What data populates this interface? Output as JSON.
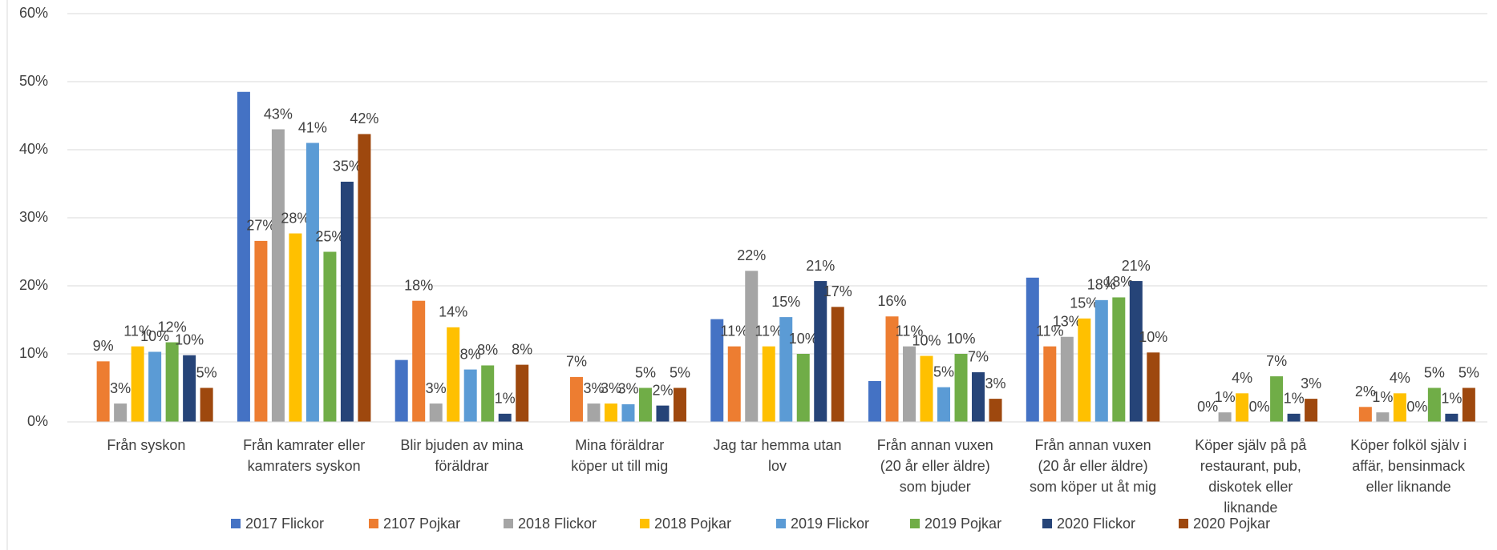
{
  "chart_data": {
    "type": "bar",
    "categories": [
      [
        "Från syskon"
      ],
      [
        "Från kamrater eller",
        "kamraters syskon"
      ],
      [
        "Blir bjuden av mina",
        "föräldrar"
      ],
      [
        "Mina föräldrar",
        "köper ut till mig"
      ],
      [
        "Jag tar hemma utan",
        "lov"
      ],
      [
        "Från annan vuxen",
        "(20 år eller äldre)",
        "som bjuder"
      ],
      [
        "Från annan vuxen",
        "(20 år eller äldre)",
        "som köper ut åt mig"
      ],
      [
        "Köper själv på på",
        "restaurant, pub,",
        "diskotek eller",
        "liknande"
      ],
      [
        "Köper folköl själv i",
        "affär, bensinmack",
        "eller liknande"
      ]
    ],
    "series": [
      {
        "name": "2017 Flickor",
        "color": "#4472c4",
        "values": [
          null,
          48.5,
          9.1,
          null,
          15.1,
          6.0,
          21.2,
          null,
          null
        ]
      },
      {
        "name": "2107 Pojkar",
        "color": "#ed7d31",
        "values": [
          8.9,
          26.6,
          17.8,
          6.6,
          11.1,
          15.5,
          11.1,
          0,
          2.2
        ],
        "value_labels": [
          "9%",
          "27%",
          "18%",
          "7%",
          "11%",
          "16%",
          "11%",
          "0%",
          "2%"
        ]
      },
      {
        "name": "2018 Flickor",
        "color": "#a5a5a5",
        "values": [
          2.7,
          43.0,
          2.7,
          2.7,
          22.2,
          11.1,
          12.5,
          1.4,
          1.4
        ],
        "value_labels": [
          "3%",
          "43%",
          "3%",
          "3%",
          "22%",
          "11%",
          "13%",
          "1%",
          "1%"
        ]
      },
      {
        "name": "2018 Pojkar",
        "color": "#ffc000",
        "values": [
          11.1,
          27.7,
          13.9,
          2.7,
          11.1,
          9.7,
          15.2,
          4.2,
          4.2
        ],
        "value_labels": [
          "11%",
          "28%",
          "14%",
          "3%",
          "11%",
          "10%",
          "15%",
          "4%",
          "4%"
        ]
      },
      {
        "name": "2019 Flickor",
        "color": "#5b9bd5",
        "values": [
          10.3,
          41.0,
          7.7,
          2.6,
          15.4,
          5.1,
          17.9,
          0,
          0
        ],
        "value_labels": [
          "10%",
          "41%",
          "8%",
          "3%",
          "15%",
          "5%",
          "18%",
          "0%",
          "0%"
        ]
      },
      {
        "name": "2019 Pojkar",
        "color": "#70ad47",
        "values": [
          11.7,
          25.0,
          8.3,
          5.0,
          10.0,
          10.0,
          18.3,
          6.7,
          5.0
        ],
        "value_labels": [
          "12%",
          "25%",
          "8%",
          "5%",
          "10%",
          "10%",
          "18%",
          "7%",
          "5%"
        ]
      },
      {
        "name": "2020 Flickor",
        "color": "#264478",
        "values": [
          9.8,
          35.3,
          1.2,
          2.4,
          20.7,
          7.3,
          20.7,
          1.2,
          1.2
        ],
        "value_labels": [
          "10%",
          "35%",
          "1%",
          "2%",
          "21%",
          "7%",
          "21%",
          "1%",
          "1%"
        ]
      },
      {
        "name": "2020 Pojkar",
        "color": "#9e480e",
        "values": [
          5.0,
          42.3,
          8.4,
          5.0,
          16.9,
          3.4,
          10.2,
          3.4,
          5.0
        ],
        "value_labels": [
          "5%",
          "42%",
          "8%",
          "5%",
          "17%",
          "3%",
          "10%",
          "3%",
          "5%"
        ]
      }
    ],
    "ylim": [
      0,
      60
    ],
    "yticks": [
      {
        "value": 0,
        "label": "0%"
      },
      {
        "value": 10,
        "label": "10%"
      },
      {
        "value": 20,
        "label": "20%"
      },
      {
        "value": 30,
        "label": "30%"
      },
      {
        "value": 40,
        "label": "40%"
      },
      {
        "value": 50,
        "label": "50%"
      },
      {
        "value": 60,
        "label": "60%"
      }
    ],
    "grid": true,
    "legend": "bottom"
  }
}
